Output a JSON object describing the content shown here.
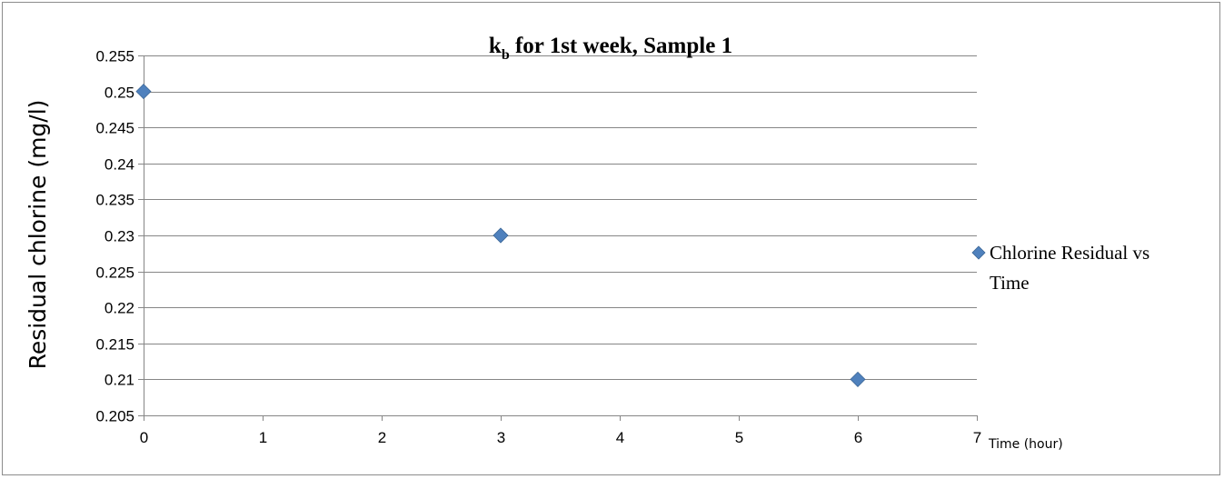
{
  "chart_data": {
    "type": "scatter",
    "title": {
      "main": "k",
      "sub": "b",
      "rest": " for 1st week, Sample 1"
    },
    "xlabel": "Time (hour)",
    "ylabel": "Residual chlorine (mg/l)",
    "xlim": [
      0,
      7
    ],
    "ylim": [
      0.205,
      0.255
    ],
    "x_ticks": [
      "0",
      "1",
      "2",
      "3",
      "4",
      "5",
      "6",
      "7"
    ],
    "y_ticks": [
      "0.205",
      "0.21",
      "0.215",
      "0.22",
      "0.225",
      "0.23",
      "0.235",
      "0.24",
      "0.245",
      "0.25",
      "0.255"
    ],
    "grid": "horizontal major",
    "legend_position": "right",
    "series": [
      {
        "name": "Chlorine Residual vs Time",
        "legend_lines": [
          "Chlorine Residual vs",
          "Time"
        ],
        "color": "#4f81bd",
        "marker": "diamond",
        "points": [
          {
            "x": 0,
            "y": 0.25
          },
          {
            "x": 3,
            "y": 0.23
          },
          {
            "x": 6,
            "y": 0.21
          }
        ]
      }
    ]
  }
}
